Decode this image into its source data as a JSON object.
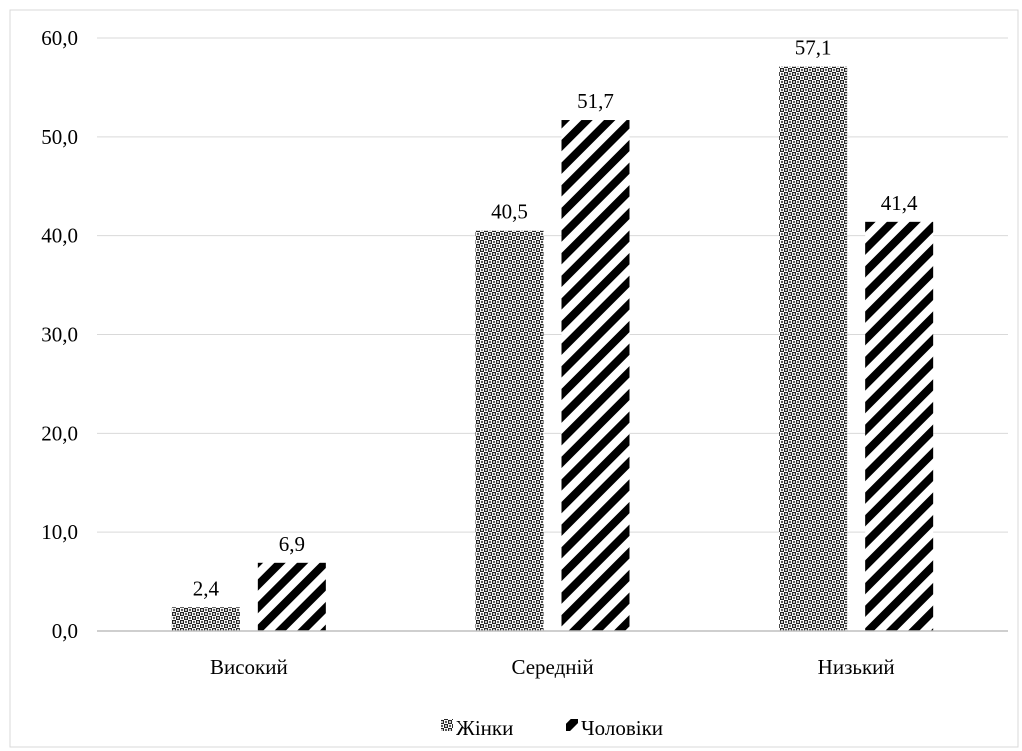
{
  "chart_data": {
    "type": "bar",
    "title": "",
    "xlabel": "",
    "ylabel": "",
    "categories": [
      "Високий",
      "Середній",
      "Низький"
    ],
    "series": [
      {
        "name": "Жінки",
        "values": [
          2.4,
          40.5,
          57.1
        ],
        "pattern": "crosshatch"
      },
      {
        "name": "Чоловіки",
        "values": [
          6.9,
          51.7,
          41.4
        ],
        "pattern": "diagonal-stripes"
      }
    ],
    "value_labels": [
      [
        "2,4",
        "40,5",
        "57,1"
      ],
      [
        "6,9",
        "51,7",
        "41,4"
      ]
    ],
    "ylim": [
      0,
      60
    ],
    "y_ticks": [
      0,
      10,
      20,
      30,
      40,
      50,
      60
    ],
    "y_tick_labels": [
      "0,0",
      "10,0",
      "20,0",
      "30,0",
      "40,0",
      "50,0",
      "60,0"
    ],
    "grid": true,
    "legend_position": "bottom",
    "colors": {
      "pattern_ink": "#000000",
      "grid": "#d9d9d9",
      "axis": "#bfbfbf",
      "border": "#d9d9d9"
    }
  }
}
